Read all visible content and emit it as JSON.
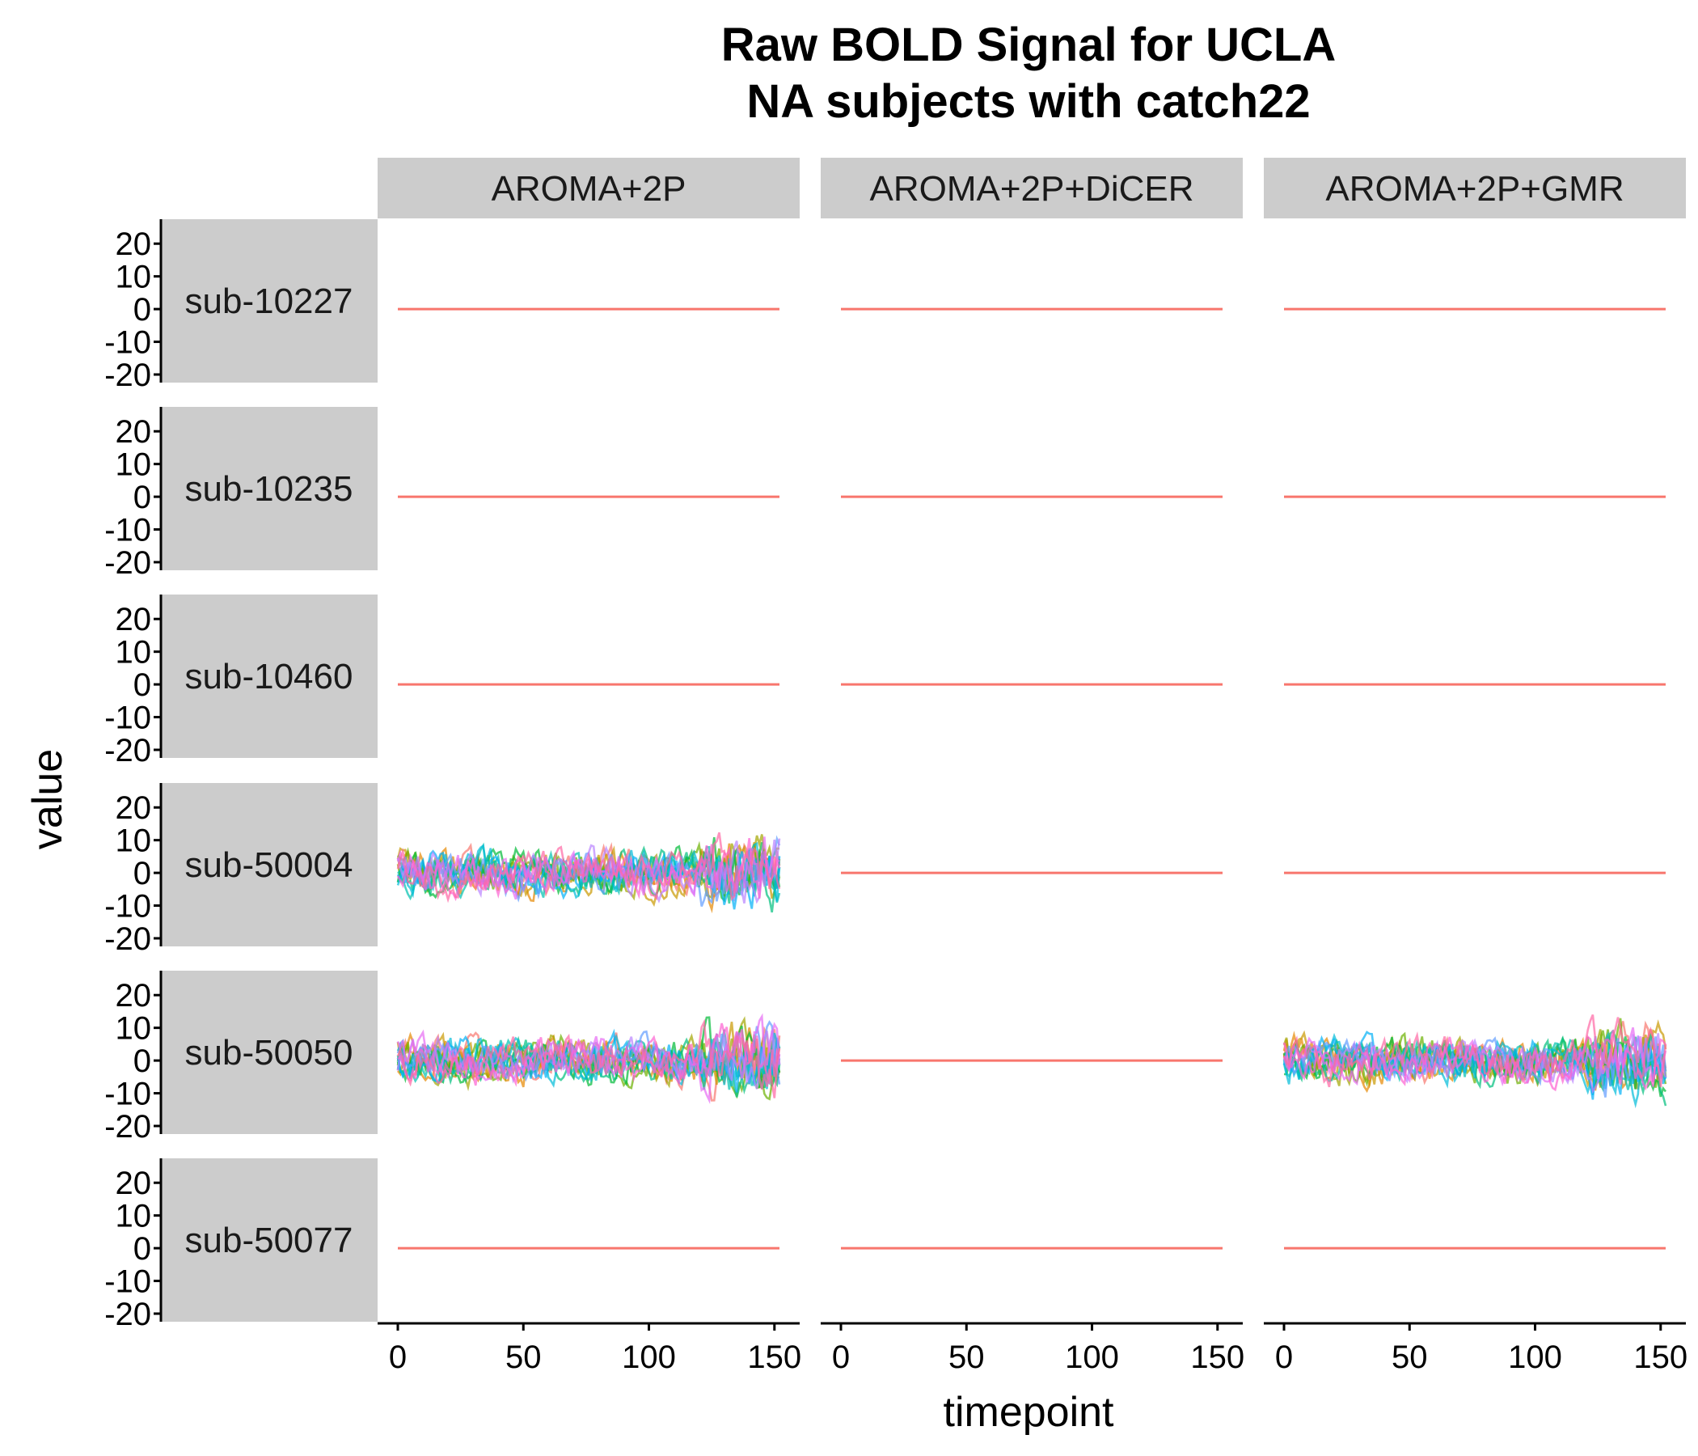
{
  "chart_data": {
    "type": "line",
    "title": [
      "Raw BOLD Signal for UCLA",
      "NA subjects with catch22"
    ],
    "xlabel": "timepoint",
    "ylabel": "value",
    "x_range": [
      0,
      152
    ],
    "ylim": [
      -20,
      25
    ],
    "x_ticks": [
      0,
      50,
      100,
      150
    ],
    "y_ticks": [
      20,
      10,
      0,
      -10,
      -20
    ],
    "columns": [
      "AROMA+2P",
      "AROMA+2P+DiCER",
      "AROMA+2P+GMR"
    ],
    "rows": [
      "sub-10227",
      "sub-10235",
      "sub-10460",
      "sub-50004",
      "sub-50050",
      "sub-50077"
    ],
    "panels": [
      {
        "row": "sub-10227",
        "column": "AROMA+2P",
        "signal": "flat",
        "value": 0
      },
      {
        "row": "sub-10227",
        "column": "AROMA+2P+DiCER",
        "signal": "flat",
        "value": 0
      },
      {
        "row": "sub-10227",
        "column": "AROMA+2P+GMR",
        "signal": "flat",
        "value": 0
      },
      {
        "row": "sub-10235",
        "column": "AROMA+2P",
        "signal": "flat",
        "value": 0
      },
      {
        "row": "sub-10235",
        "column": "AROMA+2P+DiCER",
        "signal": "flat",
        "value": 0
      },
      {
        "row": "sub-10235",
        "column": "AROMA+2P+GMR",
        "signal": "flat",
        "value": 0
      },
      {
        "row": "sub-10460",
        "column": "AROMA+2P",
        "signal": "flat",
        "value": 0
      },
      {
        "row": "sub-10460",
        "column": "AROMA+2P+DiCER",
        "signal": "flat",
        "value": 0
      },
      {
        "row": "sub-10460",
        "column": "AROMA+2P+GMR",
        "signal": "flat",
        "value": 0
      },
      {
        "row": "sub-50004",
        "column": "AROMA+2P",
        "signal": "noisy",
        "range": [
          -15,
          14
        ]
      },
      {
        "row": "sub-50004",
        "column": "AROMA+2P+DiCER",
        "signal": "flat",
        "value": 0
      },
      {
        "row": "sub-50004",
        "column": "AROMA+2P+GMR",
        "signal": "flat",
        "value": 0
      },
      {
        "row": "sub-50050",
        "column": "AROMA+2P",
        "signal": "noisy",
        "range": [
          -21,
          25
        ]
      },
      {
        "row": "sub-50050",
        "column": "AROMA+2P+DiCER",
        "signal": "flat",
        "value": 0
      },
      {
        "row": "sub-50050",
        "column": "AROMA+2P+GMR",
        "signal": "noisy",
        "range": [
          -18,
          26
        ]
      },
      {
        "row": "sub-50077",
        "column": "AROMA+2P",
        "signal": "flat",
        "value": 0
      },
      {
        "row": "sub-50077",
        "column": "AROMA+2P+DiCER",
        "signal": "flat",
        "value": 0
      },
      {
        "row": "sub-50077",
        "column": "AROMA+2P+GMR",
        "signal": "flat",
        "value": 0
      }
    ],
    "series_colors": [
      "#F8766D",
      "#E58700",
      "#C99800",
      "#A3A500",
      "#6BB100",
      "#00BA38",
      "#00BF7D",
      "#00C0AF",
      "#00BCD8",
      "#00B0F6",
      "#619CFF",
      "#B983FF",
      "#E76BF3",
      "#FD61D1",
      "#FF67A4"
    ],
    "flat_line_color": "#F8766D",
    "grid": false,
    "legend": "none"
  }
}
